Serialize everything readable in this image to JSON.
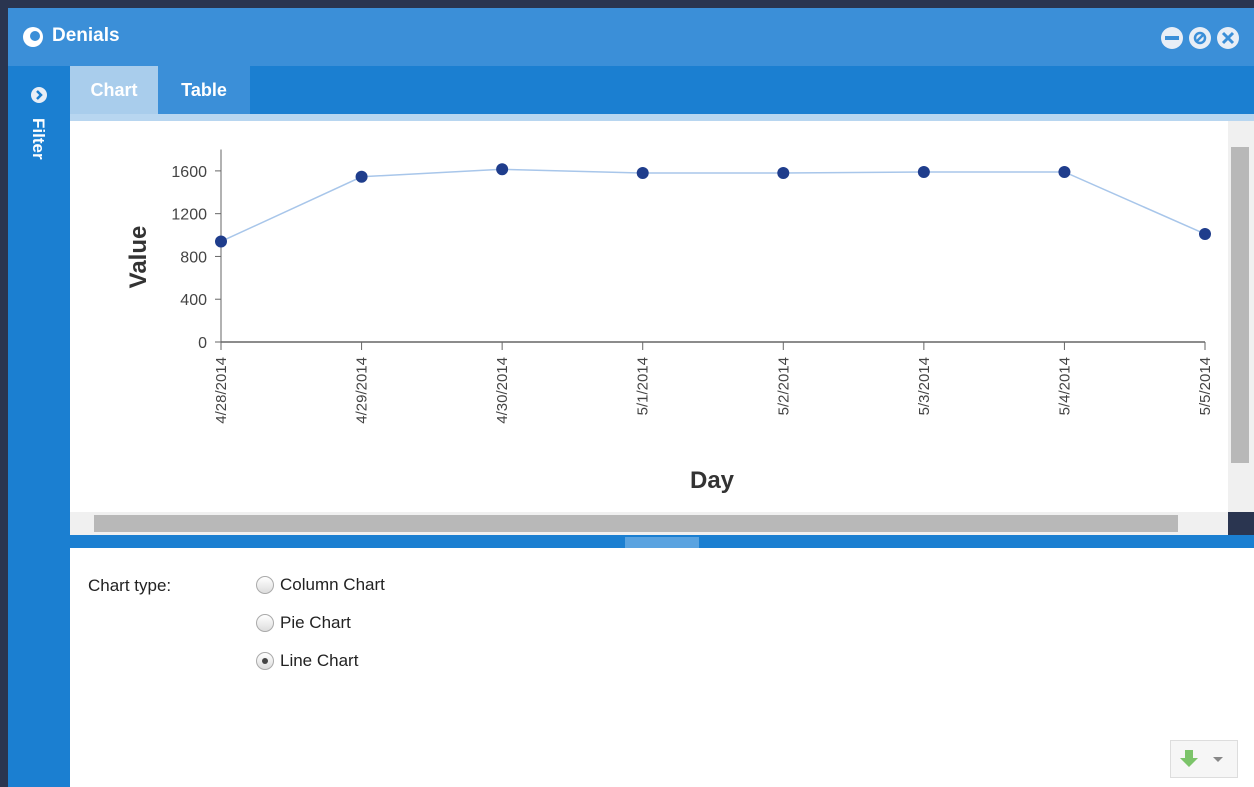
{
  "window": {
    "title": "Denials",
    "sidebar": "Filter",
    "tabs": [
      "Chart",
      "Table"
    ],
    "active_tab": 0
  },
  "chart_data": {
    "type": "line",
    "x_label": "Day",
    "y_label": "Value",
    "categories": [
      "4/28/2014",
      "4/29/2014",
      "4/30/2014",
      "5/1/2014",
      "5/2/2014",
      "5/3/2014",
      "5/4/2014",
      "5/5/2014"
    ],
    "values": [
      940,
      1545,
      1615,
      1580,
      1580,
      1590,
      1590,
      1010
    ],
    "color": "#1f3d8c",
    "line_color": "#a8c6ea",
    "ylim": [
      0,
      1800
    ],
    "yticks": [
      0,
      400,
      800,
      1200,
      1600
    ]
  },
  "options_panel": {
    "label": "Chart type:",
    "options": [
      {
        "label": "Column Chart",
        "checked": false
      },
      {
        "label": "Pie Chart",
        "checked": false
      },
      {
        "label": "Line Chart",
        "checked": true
      }
    ]
  }
}
